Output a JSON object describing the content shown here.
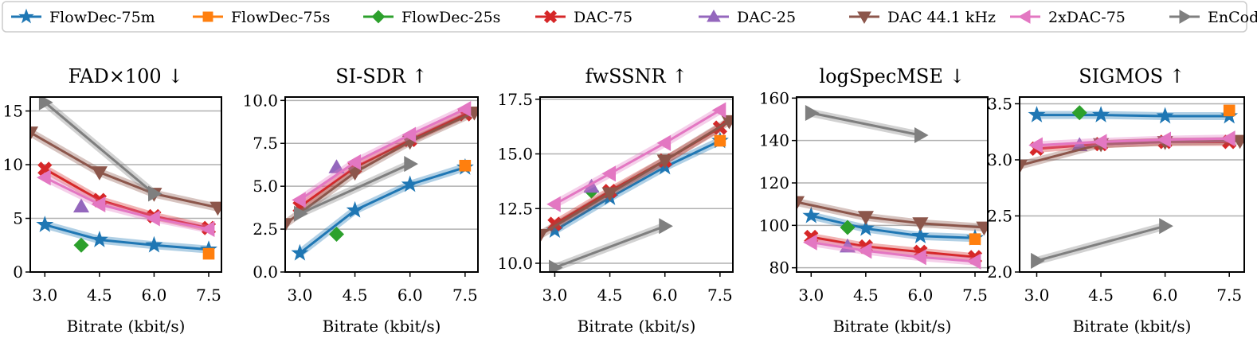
{
  "legend": {
    "items": [
      {
        "label": "FlowDec-75m",
        "color": "#1f77b4",
        "marker": "star"
      },
      {
        "label": "FlowDec-75s",
        "color": "#ff7f0e",
        "marker": "square"
      },
      {
        "label": "FlowDec-25s",
        "color": "#2ca02c",
        "marker": "diamond"
      },
      {
        "label": "DAC-75",
        "color": "#d62728",
        "marker": "x"
      },
      {
        "label": "DAC-25",
        "color": "#9467bd",
        "marker": "triangle-up"
      },
      {
        "label": "DAC 44.1 kHz",
        "color": "#8c564b",
        "marker": "triangle-down"
      },
      {
        "label": "2xDAC-75",
        "color": "#e377c2",
        "marker": "triangle-left"
      },
      {
        "label": "EnCodec",
        "color": "#7f7f7f",
        "marker": "triangle-right"
      }
    ]
  },
  "chart_data": [
    {
      "type": "line",
      "title": "FAD×100 ↓",
      "xlabel": "Bitrate (kbit/s)",
      "ylabel": "",
      "xlim": [
        2.6,
        7.85
      ],
      "ylim": [
        0,
        16.3
      ],
      "xticks": [
        "3.0",
        "4.5",
        "6.0",
        "7.5"
      ],
      "yticks": [
        "0",
        "5",
        "10",
        "15"
      ],
      "series": [
        {
          "name": "FlowDec-75m",
          "x": [
            3.0,
            4.5,
            6.0,
            7.5
          ],
          "y": [
            4.4,
            3.0,
            2.5,
            2.1
          ]
        },
        {
          "name": "FlowDec-75s",
          "x": [
            7.5
          ],
          "y": [
            1.7
          ]
        },
        {
          "name": "FlowDec-25s",
          "x": [
            4.0
          ],
          "y": [
            2.5
          ]
        },
        {
          "name": "DAC-75",
          "x": [
            3.0,
            4.5,
            6.0,
            7.5
          ],
          "y": [
            9.6,
            6.7,
            5.2,
            4.1
          ]
        },
        {
          "name": "DAC-25",
          "x": [
            4.0
          ],
          "y": [
            6.1
          ]
        },
        {
          "name": "DAC 44.1 kHz",
          "x": [
            2.6,
            4.5,
            6.0,
            7.75
          ],
          "y": [
            13.0,
            9.3,
            7.3,
            6.0
          ]
        },
        {
          "name": "2xDAC-75",
          "x": [
            3.0,
            4.5,
            6.0,
            7.5
          ],
          "y": [
            8.8,
            6.3,
            5.0,
            4.0
          ]
        },
        {
          "name": "EnCodec",
          "x": [
            3.0,
            6.0
          ],
          "y": [
            15.8,
            7.3
          ]
        }
      ]
    },
    {
      "type": "line",
      "title": "SI-SDR ↑",
      "xlabel": "Bitrate (kbit/s)",
      "ylabel": "",
      "xlim": [
        2.6,
        7.85
      ],
      "ylim": [
        0,
        10.2
      ],
      "xticks": [
        "3.0",
        "4.5",
        "6.0",
        "7.5"
      ],
      "yticks": [
        "0.0",
        "2.5",
        "5.0",
        "7.5",
        "10.0"
      ],
      "series": [
        {
          "name": "FlowDec-75m",
          "x": [
            3.0,
            4.5,
            6.0,
            7.5
          ],
          "y": [
            1.1,
            3.6,
            5.1,
            6.1
          ]
        },
        {
          "name": "FlowDec-75s",
          "x": [
            7.5
          ],
          "y": [
            6.2
          ]
        },
        {
          "name": "FlowDec-25s",
          "x": [
            4.0
          ],
          "y": [
            2.2
          ]
        },
        {
          "name": "DAC-75",
          "x": [
            3.0,
            4.5,
            6.0,
            7.5
          ],
          "y": [
            3.8,
            6.1,
            7.7,
            9.2
          ]
        },
        {
          "name": "DAC-25",
          "x": [
            4.0
          ],
          "y": [
            6.1
          ]
        },
        {
          "name": "DAC 44.1 kHz",
          "x": [
            2.6,
            4.5,
            6.0,
            7.75
          ],
          "y": [
            2.8,
            5.8,
            7.6,
            9.3
          ]
        },
        {
          "name": "2xDAC-75",
          "x": [
            3.0,
            4.5,
            6.0,
            7.5
          ],
          "y": [
            4.2,
            6.4,
            8.0,
            9.5
          ]
        },
        {
          "name": "EnCodec",
          "x": [
            3.0,
            6.0
          ],
          "y": [
            3.4,
            6.3
          ]
        }
      ]
    },
    {
      "type": "line",
      "title": "fwSSNR ↑",
      "xlabel": "Bitrate (kbit/s)",
      "ylabel": "",
      "xlim": [
        2.6,
        7.85
      ],
      "ylim": [
        9.6,
        17.6
      ],
      "xticks": [
        "3.0",
        "4.5",
        "6.0",
        "7.5"
      ],
      "yticks": [
        "10.0",
        "12.5",
        "15.0",
        "17.5"
      ],
      "series": [
        {
          "name": "FlowDec-75m",
          "x": [
            3.0,
            4.5,
            6.0,
            7.5
          ],
          "y": [
            11.5,
            13.0,
            14.4,
            15.6
          ]
        },
        {
          "name": "FlowDec-75s",
          "x": [
            7.5
          ],
          "y": [
            15.6
          ]
        },
        {
          "name": "FlowDec-25s",
          "x": [
            4.0
          ],
          "y": [
            13.3
          ]
        },
        {
          "name": "DAC-75",
          "x": [
            3.0,
            4.5,
            6.0,
            7.5
          ],
          "y": [
            11.8,
            13.3,
            14.7,
            16.2
          ]
        },
        {
          "name": "DAC-25",
          "x": [
            4.0
          ],
          "y": [
            13.5
          ]
        },
        {
          "name": "DAC 44.1 kHz",
          "x": [
            2.6,
            4.5,
            6.0,
            7.75
          ],
          "y": [
            11.3,
            13.2,
            14.7,
            16.5
          ]
        },
        {
          "name": "2xDAC-75",
          "x": [
            3.0,
            4.5,
            6.0,
            7.5
          ],
          "y": [
            12.7,
            14.1,
            15.5,
            17.0
          ]
        },
        {
          "name": "EnCodec",
          "x": [
            3.0,
            6.0
          ],
          "y": [
            9.8,
            11.7
          ]
        }
      ]
    },
    {
      "type": "line",
      "title": "logSpecMSE ↓",
      "xlabel": "Bitrate (kbit/s)",
      "ylabel": "",
      "xlim": [
        2.6,
        7.85
      ],
      "ylim": [
        78,
        160.5
      ],
      "xticks": [
        "3.0",
        "4.5",
        "6.0",
        "7.5"
      ],
      "yticks": [
        "80",
        "100",
        "120",
        "140",
        "160"
      ],
      "series": [
        {
          "name": "FlowDec-75m",
          "x": [
            3.0,
            4.5,
            6.0,
            7.5
          ],
          "y": [
            104.5,
            98.5,
            95.0,
            94.0
          ]
        },
        {
          "name": "FlowDec-75s",
          "x": [
            7.5
          ],
          "y": [
            93.5
          ]
        },
        {
          "name": "FlowDec-25s",
          "x": [
            4.0
          ],
          "y": [
            99.0
          ]
        },
        {
          "name": "DAC-75",
          "x": [
            3.0,
            4.5,
            6.0,
            7.5
          ],
          "y": [
            94.5,
            90.0,
            87.5,
            85.0
          ]
        },
        {
          "name": "DAC-25",
          "x": [
            4.0
          ],
          "y": [
            90.0
          ]
        },
        {
          "name": "DAC 44.1 kHz",
          "x": [
            2.6,
            4.5,
            6.0,
            7.75
          ],
          "y": [
            111.0,
            104.0,
            101.0,
            99.0
          ]
        },
        {
          "name": "2xDAC-75",
          "x": [
            3.0,
            4.5,
            6.0,
            7.5
          ],
          "y": [
            92.0,
            88.0,
            85.0,
            83.0
          ]
        },
        {
          "name": "EnCodec",
          "x": [
            3.0,
            6.0
          ],
          "y": [
            153.0,
            142.5
          ]
        }
      ]
    },
    {
      "type": "line",
      "title": "SIGMOS ↑",
      "xlabel": "Bitrate (kbit/s)",
      "ylabel": "",
      "xlim": [
        2.6,
        7.85
      ],
      "ylim": [
        2.0,
        3.56
      ],
      "xticks": [
        "3.0",
        "4.5",
        "6.0",
        "7.5"
      ],
      "yticks": [
        "2.0",
        "2.5",
        "3.0",
        "3.5"
      ],
      "series": [
        {
          "name": "FlowDec-75m",
          "x": [
            3.0,
            4.5,
            6.0,
            7.5
          ],
          "y": [
            3.4,
            3.4,
            3.39,
            3.39
          ]
        },
        {
          "name": "FlowDec-75s",
          "x": [
            7.5
          ],
          "y": [
            3.44
          ]
        },
        {
          "name": "FlowDec-25s",
          "x": [
            4.0
          ],
          "y": [
            3.42
          ]
        },
        {
          "name": "DAC-75",
          "x": [
            3.0,
            4.5,
            6.0,
            7.5
          ],
          "y": [
            3.1,
            3.14,
            3.16,
            3.16
          ]
        },
        {
          "name": "DAC-25",
          "x": [
            4.0
          ],
          "y": [
            3.13
          ]
        },
        {
          "name": "DAC 44.1 kHz",
          "x": [
            2.6,
            4.5,
            6.0,
            7.75
          ],
          "y": [
            2.95,
            3.14,
            3.16,
            3.17
          ]
        },
        {
          "name": "2xDAC-75",
          "x": [
            3.0,
            4.5,
            6.0,
            7.5
          ],
          "y": [
            3.13,
            3.16,
            3.18,
            3.19
          ]
        },
        {
          "name": "EnCodec",
          "x": [
            3.0,
            6.0
          ],
          "y": [
            2.1,
            2.41
          ]
        }
      ]
    }
  ]
}
